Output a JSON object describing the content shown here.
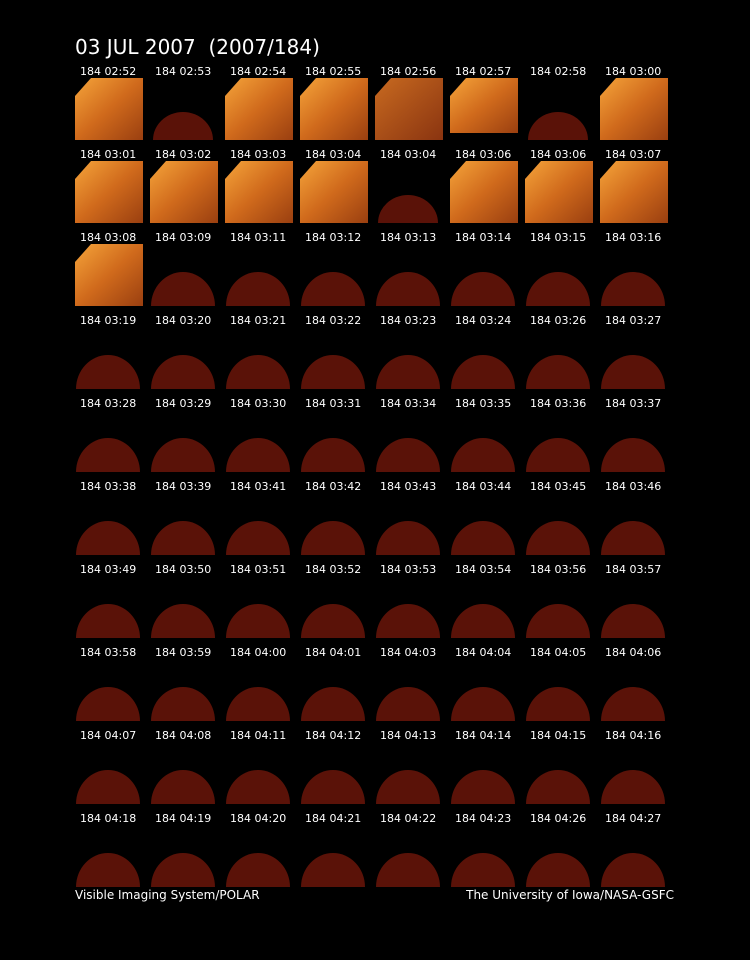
{
  "header": {
    "title": "03 JUL 2007  (2007/184)"
  },
  "frames": [
    [
      "184 02:52",
      "184 02:53",
      "184 02:54",
      "184 02:55",
      "184 02:56",
      "184 02:57",
      "184 02:58",
      "184 03:00"
    ],
    [
      "184 03:01",
      "184 03:02",
      "184 03:03",
      "184 03:04",
      "184 03:04",
      "184 03:06",
      "184 03:06",
      "184 03:07"
    ],
    [
      "184 03:08",
      "184 03:09",
      "184 03:11",
      "184 03:12",
      "184 03:13",
      "184 03:14",
      "184 03:15",
      "184 03:16"
    ],
    [
      "184 03:19",
      "184 03:20",
      "184 03:21",
      "184 03:22",
      "184 03:23",
      "184 03:24",
      "184 03:26",
      "184 03:27"
    ],
    [
      "184 03:28",
      "184 03:29",
      "184 03:30",
      "184 03:31",
      "184 03:34",
      "184 03:35",
      "184 03:36",
      "184 03:37"
    ],
    [
      "184 03:38",
      "184 03:39",
      "184 03:41",
      "184 03:42",
      "184 03:43",
      "184 03:44",
      "184 03:45",
      "184 03:46"
    ],
    [
      "184 03:49",
      "184 03:50",
      "184 03:51",
      "184 03:52",
      "184 03:53",
      "184 03:54",
      "184 03:56",
      "184 03:57"
    ],
    [
      "184 03:58",
      "184 03:59",
      "184 04:00",
      "184 04:01",
      "184 04:03",
      "184 04:04",
      "184 04:05",
      "184 04:06"
    ],
    [
      "184 04:07",
      "184 04:08",
      "184 04:11",
      "184 04:12",
      "184 04:13",
      "184 04:14",
      "184 04:15",
      "184 04:16"
    ],
    [
      "184 04:18",
      "184 04:19",
      "184 04:20",
      "184 04:21",
      "184 04:22",
      "184 04:23",
      "184 04:26",
      "184 04:27"
    ]
  ],
  "footer": {
    "left": "Visible Imaging System/POLAR",
    "right": "The University of Iowa/NASA-GSFC"
  }
}
